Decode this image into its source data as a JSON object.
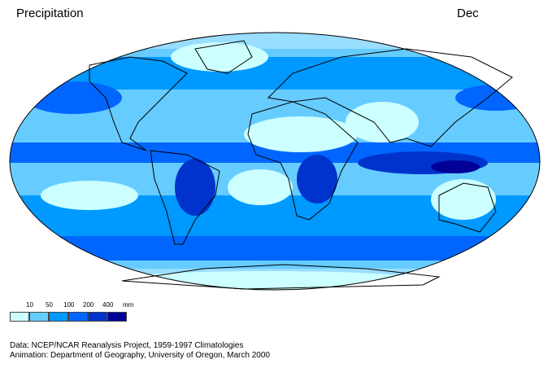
{
  "title": "Precipitation",
  "month": "Dec",
  "legend": {
    "unit": "mm",
    "breaks": [
      "10",
      "50",
      "100",
      "200",
      "400"
    ],
    "colors": [
      "#ccffff",
      "#66ccff",
      "#0099ff",
      "#0066ff",
      "#0033cc",
      "#000099"
    ]
  },
  "credits": {
    "data": "Data:  NCEP/NCAR Reanalysis Project, 1959-1997 Climatologies",
    "animation": "Animation:  Department of Geography, University of Oregon, March 2000"
  }
}
